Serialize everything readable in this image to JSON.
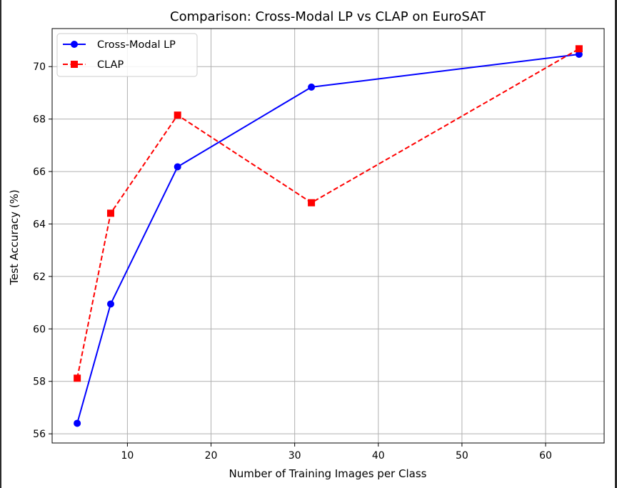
{
  "chart_data": {
    "type": "line",
    "title": "Comparison: Cross-Modal LP vs CLAP on EuroSAT",
    "xlabel": "Number of Training Images per Class",
    "ylabel": "Test Accuracy (%)",
    "xlim": [
      1.0,
      67.0
    ],
    "ylim": [
      55.65,
      71.45
    ],
    "xticks": [
      10,
      20,
      30,
      40,
      50,
      60
    ],
    "yticks": [
      56,
      58,
      60,
      62,
      64,
      66,
      68,
      70
    ],
    "grid": true,
    "legend_position": "top-left",
    "series": [
      {
        "name": "Cross-Modal LP",
        "color": "#0000ff",
        "linestyle": "solid",
        "marker": "circle",
        "x": [
          4,
          8,
          16,
          32,
          64
        ],
        "y": [
          56.4,
          60.95,
          66.18,
          69.22,
          70.47
        ]
      },
      {
        "name": "CLAP",
        "color": "#ff0000",
        "linestyle": "dashed",
        "marker": "square",
        "x": [
          4,
          8,
          16,
          32,
          64
        ],
        "y": [
          58.12,
          64.41,
          68.15,
          64.81,
          70.68
        ]
      }
    ]
  }
}
